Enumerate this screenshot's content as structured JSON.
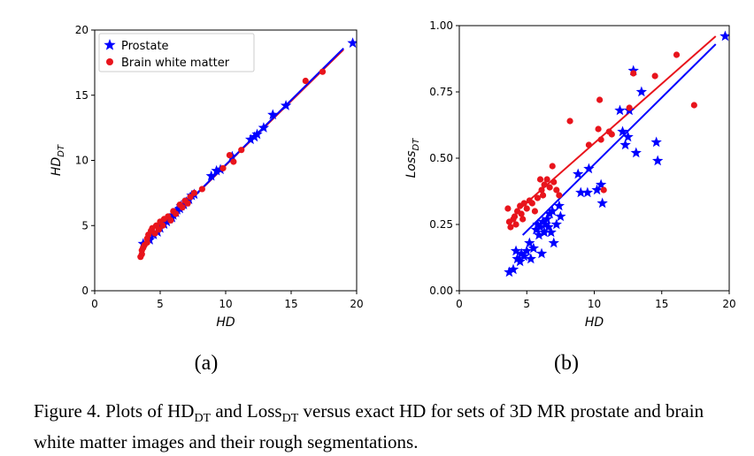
{
  "chart_data": [
    {
      "id": "a",
      "type": "scatter",
      "panel_label": "(a)",
      "xlabel": "HD",
      "ylabel": "HD",
      "ylabel_sub": "DT",
      "xlim": [
        0,
        20
      ],
      "ylim": [
        0,
        20
      ],
      "xticks": [
        "0",
        "5",
        "10",
        "15",
        "20"
      ],
      "yticks": [
        "0",
        "5",
        "10",
        "15",
        "20"
      ],
      "legend": {
        "position": "top-left",
        "entries": [
          "Prostate",
          "Brain white matter"
        ]
      },
      "series": [
        {
          "name": "Prostate",
          "color": "#0000ff",
          "marker": "star",
          "points": [
            [
              3.7,
              3.6
            ],
            [
              4.2,
              3.9
            ],
            [
              4.5,
              4.3
            ],
            [
              4.8,
              4.5
            ],
            [
              5.0,
              4.8
            ],
            [
              5.3,
              5.1
            ],
            [
              5.5,
              5.3
            ],
            [
              5.7,
              5.5
            ],
            [
              5.9,
              5.6
            ],
            [
              6.0,
              5.8
            ],
            [
              6.2,
              6.0
            ],
            [
              6.3,
              6.2
            ],
            [
              6.5,
              6.3
            ],
            [
              6.6,
              6.5
            ],
            [
              6.8,
              6.6
            ],
            [
              7.0,
              6.8
            ],
            [
              7.2,
              7.0
            ],
            [
              7.4,
              7.3
            ],
            [
              7.6,
              7.4
            ],
            [
              8.9,
              8.8
            ],
            [
              9.3,
              9.2
            ],
            [
              9.6,
              9.3
            ],
            [
              10.5,
              10.3
            ],
            [
              11.9,
              11.6
            ],
            [
              12.2,
              11.8
            ],
            [
              12.4,
              12.0
            ],
            [
              12.9,
              12.5
            ],
            [
              13.6,
              13.5
            ],
            [
              14.6,
              14.2
            ],
            [
              19.7,
              19.0
            ]
          ]
        },
        {
          "name": "Brain white matter",
          "color": "#e8141c",
          "marker": "circle",
          "points": [
            [
              3.5,
              2.6
            ],
            [
              3.6,
              2.8
            ],
            [
              3.6,
              3.1
            ],
            [
              3.7,
              3.3
            ],
            [
              3.8,
              3.5
            ],
            [
              4.0,
              3.7
            ],
            [
              4.0,
              4.0
            ],
            [
              4.1,
              4.3
            ],
            [
              4.3,
              4.6
            ],
            [
              4.4,
              4.8
            ],
            [
              4.6,
              4.4
            ],
            [
              4.7,
              5.0
            ],
            [
              4.9,
              4.7
            ],
            [
              5.0,
              5.3
            ],
            [
              5.2,
              5.0
            ],
            [
              5.3,
              5.5
            ],
            [
              5.6,
              5.7
            ],
            [
              5.8,
              5.4
            ],
            [
              6.0,
              6.1
            ],
            [
              6.2,
              5.9
            ],
            [
              6.5,
              6.6
            ],
            [
              6.7,
              6.4
            ],
            [
              6.9,
              6.9
            ],
            [
              7.1,
              6.7
            ],
            [
              7.3,
              7.2
            ],
            [
              7.6,
              7.5
            ],
            [
              8.2,
              7.8
            ],
            [
              9.8,
              9.4
            ],
            [
              10.3,
              10.4
            ],
            [
              10.6,
              9.9
            ],
            [
              11.2,
              10.8
            ],
            [
              16.1,
              16.1
            ],
            [
              17.4,
              16.8
            ]
          ]
        }
      ],
      "fit_lines": [
        {
          "color": "#e8141c",
          "from": [
            3.5,
            3.2
          ],
          "to": [
            19.0,
            18.5
          ]
        },
        {
          "color": "#0000ff",
          "from": [
            3.6,
            3.3
          ],
          "to": [
            19.0,
            18.6
          ]
        }
      ]
    },
    {
      "id": "b",
      "type": "scatter",
      "panel_label": "(b)",
      "xlabel": "HD",
      "ylabel": "Loss",
      "ylabel_sub": "DT",
      "xlim": [
        0,
        20
      ],
      "ylim": [
        0,
        1
      ],
      "xticks": [
        "0",
        "5",
        "10",
        "15",
        "20"
      ],
      "yticks": [
        "0.00",
        "0.25",
        "0.50",
        "0.75",
        "1.00"
      ],
      "series": [
        {
          "name": "Prostate",
          "color": "#0000ff",
          "marker": "star",
          "points": [
            [
              3.7,
              0.07
            ],
            [
              4.0,
              0.08
            ],
            [
              4.2,
              0.15
            ],
            [
              4.3,
              0.12
            ],
            [
              4.5,
              0.11
            ],
            [
              4.6,
              0.14
            ],
            [
              4.8,
              0.13
            ],
            [
              5.0,
              0.15
            ],
            [
              5.2,
              0.18
            ],
            [
              5.3,
              0.12
            ],
            [
              5.5,
              0.16
            ],
            [
              5.7,
              0.23
            ],
            [
              5.8,
              0.25
            ],
            [
              5.9,
              0.21
            ],
            [
              6.0,
              0.24
            ],
            [
              6.1,
              0.14
            ],
            [
              6.2,
              0.26
            ],
            [
              6.3,
              0.22
            ],
            [
              6.4,
              0.25
            ],
            [
              6.5,
              0.27
            ],
            [
              6.6,
              0.24
            ],
            [
              6.7,
              0.29
            ],
            [
              6.8,
              0.22
            ],
            [
              6.9,
              0.3
            ],
            [
              7.0,
              0.18
            ],
            [
              7.2,
              0.25
            ],
            [
              7.4,
              0.32
            ],
            [
              7.5,
              0.28
            ],
            [
              8.8,
              0.44
            ],
            [
              9.0,
              0.37
            ],
            [
              9.5,
              0.37
            ],
            [
              9.6,
              0.46
            ],
            [
              10.2,
              0.38
            ],
            [
              10.5,
              0.4
            ],
            [
              10.6,
              0.33
            ],
            [
              11.9,
              0.68
            ],
            [
              12.1,
              0.6
            ],
            [
              12.3,
              0.55
            ],
            [
              12.5,
              0.58
            ],
            [
              12.6,
              0.68
            ],
            [
              12.9,
              0.83
            ],
            [
              13.1,
              0.52
            ],
            [
              13.5,
              0.75
            ],
            [
              14.6,
              0.56
            ],
            [
              14.7,
              0.49
            ],
            [
              19.7,
              0.96
            ]
          ]
        },
        {
          "name": "Brain white matter",
          "color": "#e8141c",
          "marker": "circle",
          "points": [
            [
              3.6,
              0.31
            ],
            [
              3.7,
              0.26
            ],
            [
              3.8,
              0.24
            ],
            [
              4.0,
              0.27
            ],
            [
              4.1,
              0.28
            ],
            [
              4.2,
              0.25
            ],
            [
              4.3,
              0.3
            ],
            [
              4.5,
              0.32
            ],
            [
              4.6,
              0.29
            ],
            [
              4.7,
              0.27
            ],
            [
              4.8,
              0.33
            ],
            [
              5.0,
              0.31
            ],
            [
              5.2,
              0.34
            ],
            [
              5.4,
              0.33
            ],
            [
              5.6,
              0.3
            ],
            [
              5.8,
              0.35
            ],
            [
              6.0,
              0.42
            ],
            [
              6.1,
              0.38
            ],
            [
              6.2,
              0.36
            ],
            [
              6.3,
              0.4
            ],
            [
              6.5,
              0.42
            ],
            [
              6.7,
              0.39
            ],
            [
              6.9,
              0.47
            ],
            [
              7.0,
              0.41
            ],
            [
              7.2,
              0.38
            ],
            [
              7.4,
              0.36
            ],
            [
              8.2,
              0.64
            ],
            [
              9.6,
              0.55
            ],
            [
              10.3,
              0.61
            ],
            [
              10.4,
              0.72
            ],
            [
              10.5,
              0.57
            ],
            [
              10.7,
              0.38
            ],
            [
              11.1,
              0.6
            ],
            [
              11.3,
              0.59
            ],
            [
              12.6,
              0.69
            ],
            [
              12.9,
              0.82
            ],
            [
              14.5,
              0.81
            ],
            [
              16.1,
              0.89
            ],
            [
              17.4,
              0.7
            ]
          ]
        }
      ],
      "fit_lines": [
        {
          "color": "#e8141c",
          "from": [
            4.5,
            0.31
          ],
          "to": [
            19.0,
            0.96
          ]
        },
        {
          "color": "#0000ff",
          "from": [
            4.7,
            0.21
          ],
          "to": [
            19.0,
            0.93
          ]
        }
      ]
    }
  ],
  "caption": {
    "prefix": "Figure 4.  Plots of HD",
    "sub1": "DT",
    "mid": " and Loss",
    "sub2": "DT",
    "suffix": " versus exact HD for sets of 3D MR prostate and brain white matter images and their rough segmentations."
  }
}
